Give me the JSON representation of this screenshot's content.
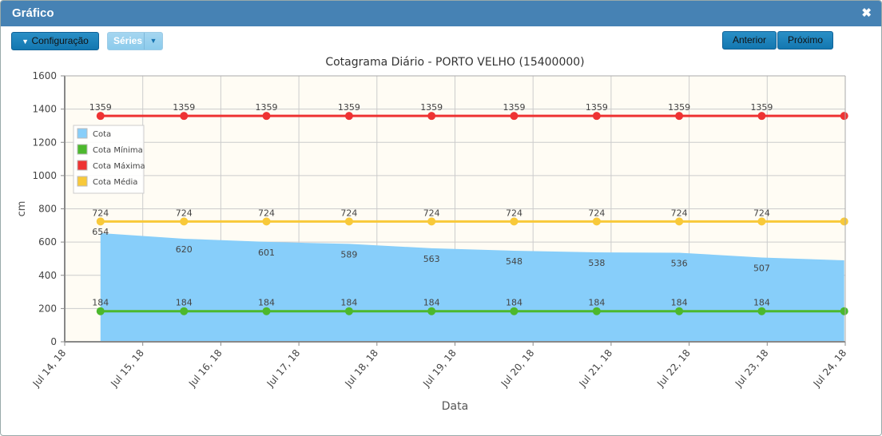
{
  "window": {
    "title": "Gráfico",
    "close_icon": "close-icon"
  },
  "toolbar": {
    "config_label": "Configuração",
    "series_label": "Séries",
    "prev_label": "Anterior",
    "next_label": "Próximo"
  },
  "chart_data": {
    "type": "line",
    "title": "Cotagrama Diário - PORTO VELHO (15400000)",
    "xlabel": "Data",
    "ylabel": "cm",
    "ylim": [
      0,
      1600
    ],
    "yticks": [
      0,
      200,
      400,
      600,
      800,
      1000,
      1200,
      1400,
      1600
    ],
    "xlim": [
      "2018-07-14",
      "2018-07-24"
    ],
    "xticks": [
      "Jul 14, 18",
      "Jul 15, 18",
      "Jul 16, 18",
      "Jul 17, 18",
      "Jul 18, 18",
      "Jul 19, 18",
      "Jul 20, 18",
      "Jul 21, 18",
      "Jul 22, 18",
      "Jul 23, 18",
      "Jul 24, 18"
    ],
    "grid": true,
    "legend": "top-left",
    "x": [
      "2018-07-14T11:00",
      "2018-07-15T12:40",
      "2018-07-16T14:02",
      "2018-07-17T15:26",
      "2018-07-18T16:48",
      "2018-07-19T18:10",
      "2018-07-20T19:34",
      "2018-07-21T20:56",
      "2018-07-22T22:19",
      "2018-07-23T23:41"
    ],
    "series": [
      {
        "name": "Cota",
        "kind": "area",
        "color": "#87cefa",
        "values": [
          654,
          620,
          601,
          589,
          563,
          548,
          538,
          536,
          507,
          490
        ],
        "labels": [
          "654",
          "620",
          "601",
          "589",
          "563",
          "548",
          "538",
          "536",
          "507",
          ""
        ]
      },
      {
        "name": "Cota Mínima",
        "kind": "line",
        "color": "#4cb82d",
        "values": [
          184,
          184,
          184,
          184,
          184,
          184,
          184,
          184,
          184,
          184
        ],
        "labels": [
          "184",
          "184",
          "184",
          "184",
          "184",
          "184",
          "184",
          "184",
          "184",
          ""
        ]
      },
      {
        "name": "Cota Máxima",
        "kind": "line",
        "color": "#ee3333",
        "values": [
          1359,
          1359,
          1359,
          1359,
          1359,
          1359,
          1359,
          1359,
          1359,
          1359
        ],
        "labels": [
          "1359",
          "1359",
          "1359",
          "1359",
          "1359",
          "1359",
          "1359",
          "1359",
          "1359",
          ""
        ]
      },
      {
        "name": "Cota Média",
        "kind": "line",
        "color": "#f8c93a",
        "values": [
          724,
          724,
          724,
          724,
          724,
          724,
          724,
          724,
          724,
          724
        ],
        "labels": [
          "724",
          "724",
          "724",
          "724",
          "724",
          "724",
          "724",
          "724",
          "724",
          ""
        ]
      }
    ],
    "plot_background": "#fffcf4"
  }
}
